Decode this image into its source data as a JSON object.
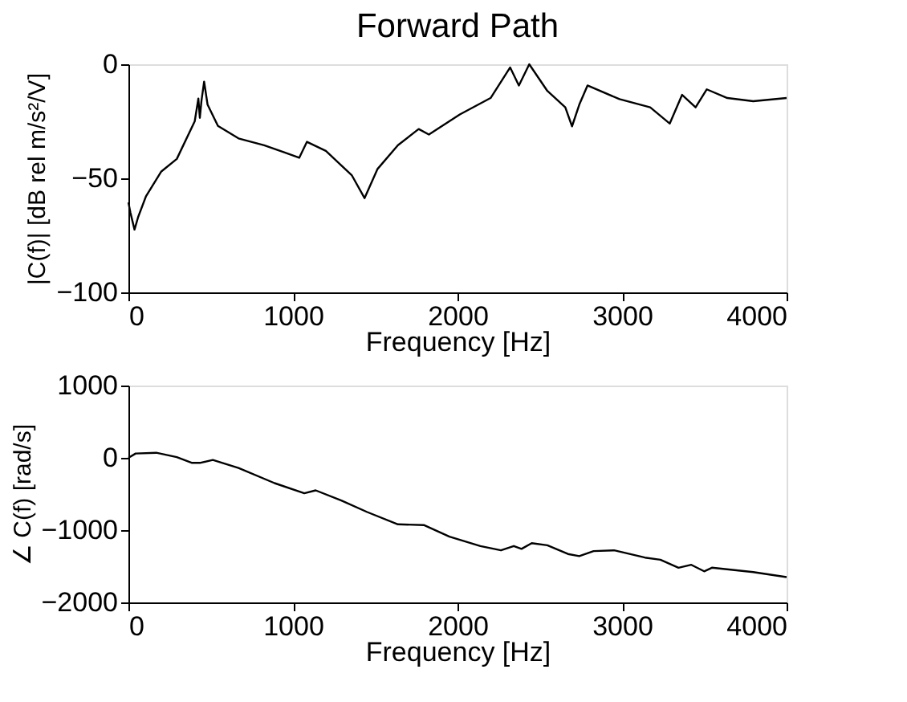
{
  "chart_data": [
    {
      "type": "line",
      "title": "Forward Path",
      "xlabel": "Frequency [Hz]",
      "ylabel": "|C(f)| [dB rel m/s²/V]",
      "xlim": [
        0,
        4000
      ],
      "xticks": [
        0,
        1000,
        2000,
        3000,
        4000
      ],
      "ylim": [
        -100,
        0
      ],
      "yticks": [
        -100,
        -50,
        0
      ],
      "grid": false,
      "marker": "none",
      "line_style": "solid",
      "series": [
        {
          "color": "#000000",
          "x": [
            0,
            12,
            37,
            59,
            106,
            200,
            294,
            403,
            425,
            434,
            444,
            460,
            481,
            544,
            669,
            825,
            950,
            1038,
            1085,
            1200,
            1357,
            1435,
            1513,
            1638,
            1764,
            1826,
            2014,
            2201,
            2320,
            2373,
            2436,
            2546,
            2655,
            2696,
            2740,
            2790,
            2984,
            3171,
            3290,
            3365,
            3447,
            3515,
            3640,
            3797,
            4000
          ],
          "values": [
            -60.6,
            -65,
            -72.5,
            -67,
            -58,
            -47,
            -41.5,
            -25,
            -15,
            -23.5,
            -16,
            -7.6,
            -17.7,
            -27,
            -32.5,
            -35.5,
            -38.7,
            -41,
            -34,
            -38,
            -48.6,
            -58.7,
            -46,
            -35.5,
            -28.4,
            -30.8,
            -22,
            -14.8,
            -1.4,
            -9.3,
            0,
            -11.7,
            -18.9,
            -27.2,
            -17.7,
            -9.3,
            -15.3,
            -18.9,
            -26,
            -13.4,
            -18.9,
            -11,
            -14.8,
            -16.2,
            -14.8
          ]
        }
      ]
    },
    {
      "type": "line",
      "xlabel": "Frequency [Hz]",
      "ylabel": "∠ C(f) [rad/s]",
      "xlim": [
        0,
        4000
      ],
      "xticks": [
        0,
        1000,
        2000,
        3000,
        4000
      ],
      "ylim": [
        -2000,
        1000
      ],
      "yticks": [
        -2000,
        -1000,
        0,
        1000
      ],
      "grid": false,
      "marker": "none",
      "line_style": "solid",
      "series": [
        {
          "color": "#000000",
          "x": [
            0,
            44,
            169,
            294,
            387,
            434,
            513,
            669,
            888,
            1069,
            1138,
            1294,
            1451,
            1638,
            1795,
            1951,
            2139,
            2264,
            2342,
            2389,
            2451,
            2546,
            2671,
            2740,
            2827,
            2952,
            3139,
            3233,
            3343,
            3421,
            3499,
            3546,
            3797,
            4000
          ],
          "values": [
            0,
            60,
            70,
            10,
            -70,
            -70,
            -30,
            -140,
            -350,
            -490,
            -450,
            -590,
            -750,
            -920,
            -930,
            -1090,
            -1220,
            -1280,
            -1220,
            -1260,
            -1180,
            -1210,
            -1330,
            -1360,
            -1290,
            -1280,
            -1380,
            -1410,
            -1520,
            -1480,
            -1570,
            -1520,
            -1580,
            -1650
          ]
        }
      ]
    }
  ]
}
